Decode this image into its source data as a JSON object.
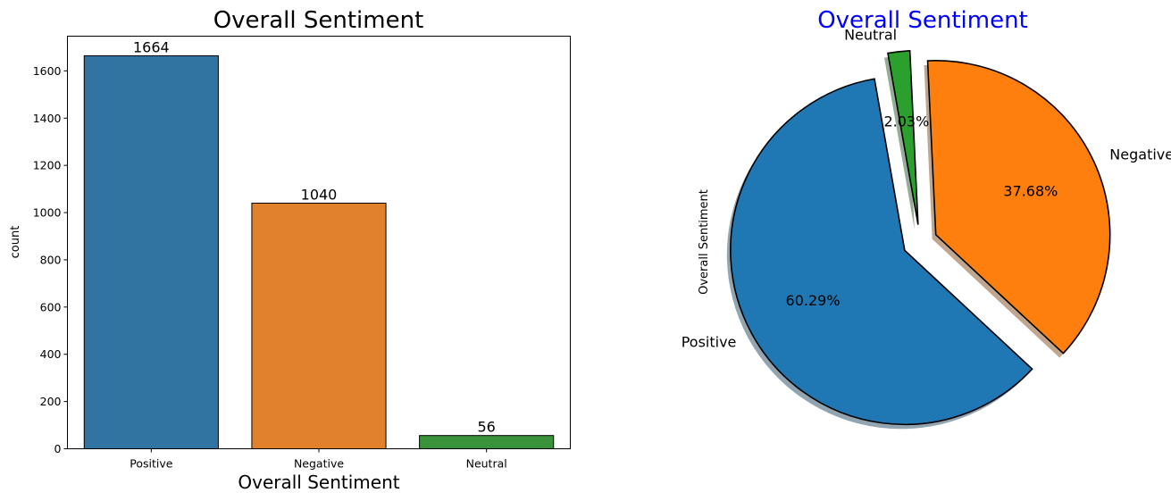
{
  "chart_data": [
    {
      "type": "bar",
      "title": "Overall Sentiment",
      "xlabel": "Overall Sentiment",
      "ylabel": "count",
      "categories": [
        "Positive",
        "Negative",
        "Neutral"
      ],
      "values": [
        1664,
        1040,
        56
      ],
      "data_labels": [
        "1664",
        "1040",
        "56"
      ],
      "colors": [
        "#3274a1",
        "#e1812c",
        "#3a923a"
      ],
      "ylim": [
        0,
        1747
      ],
      "yticks": [
        0,
        200,
        400,
        600,
        800,
        1000,
        1200,
        1400,
        1600
      ],
      "grid": false
    },
    {
      "type": "pie",
      "title": "Overall Sentiment",
      "title_color": "#0000ff",
      "ylabel": "Overall Sentiment",
      "labels": [
        "Positive",
        "Negative",
        "Neutral"
      ],
      "values": [
        1664,
        1040,
        56
      ],
      "percent_labels": [
        "60.29%",
        "37.68%",
        "2.03%"
      ],
      "colors": [
        "#1f77b4",
        "#ff7f0e",
        "#2ca02c"
      ],
      "explode": [
        0.1,
        0.1,
        0.1
      ],
      "startangle": 100,
      "shadow": true
    }
  ]
}
